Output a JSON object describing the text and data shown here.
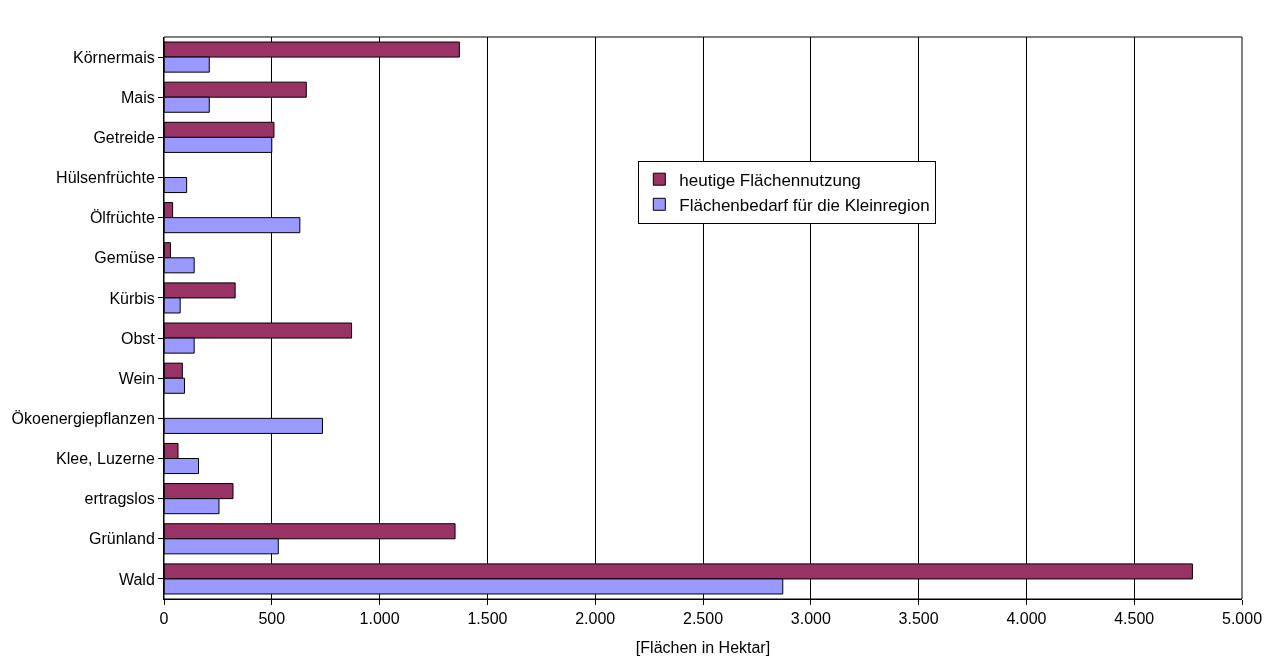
{
  "chart_data": {
    "type": "bar",
    "orientation": "horizontal",
    "xlabel": "[Flächen in Hektar]",
    "categories": [
      "Körnermais",
      "Mais",
      "Getreide",
      "Hülsenfrüchte",
      "Ölfrüchte",
      "Gemüse",
      "Kürbis",
      "Obst",
      "Wein",
      "Ökoenergiepflanzen",
      "Klee, Luzerne",
      "ertragslos",
      "Grünland",
      "Wald"
    ],
    "series": [
      {
        "name": "heutige Flächennutzung",
        "color": "#993366",
        "values": [
          1370,
          660,
          510,
          null,
          40,
          30,
          330,
          870,
          85,
          null,
          65,
          320,
          1350,
          4770
        ]
      },
      {
        "name": "Flächenbedarf für die Kleinregion",
        "color": "#9999ff",
        "values": [
          210,
          210,
          500,
          105,
          630,
          140,
          75,
          140,
          95,
          735,
          160,
          255,
          530,
          2870
        ]
      }
    ],
    "xlim": [
      0,
      5000
    ],
    "xticks": [
      0,
      500,
      {
        "value": 1000,
        "label": "1.000"
      },
      {
        "value": 1500,
        "label": "1.500"
      },
      {
        "value": 2000,
        "label": "2.000"
      },
      {
        "value": 2500,
        "label": "2.500"
      },
      {
        "value": 3000,
        "label": "3.000"
      },
      {
        "value": 3500,
        "label": "3.500"
      },
      {
        "value": 4000,
        "label": "4.000"
      },
      {
        "value": 4500,
        "label": "4.500"
      },
      {
        "value": 5000,
        "label": "5.000"
      }
    ],
    "grid": "x",
    "legend": "right"
  }
}
